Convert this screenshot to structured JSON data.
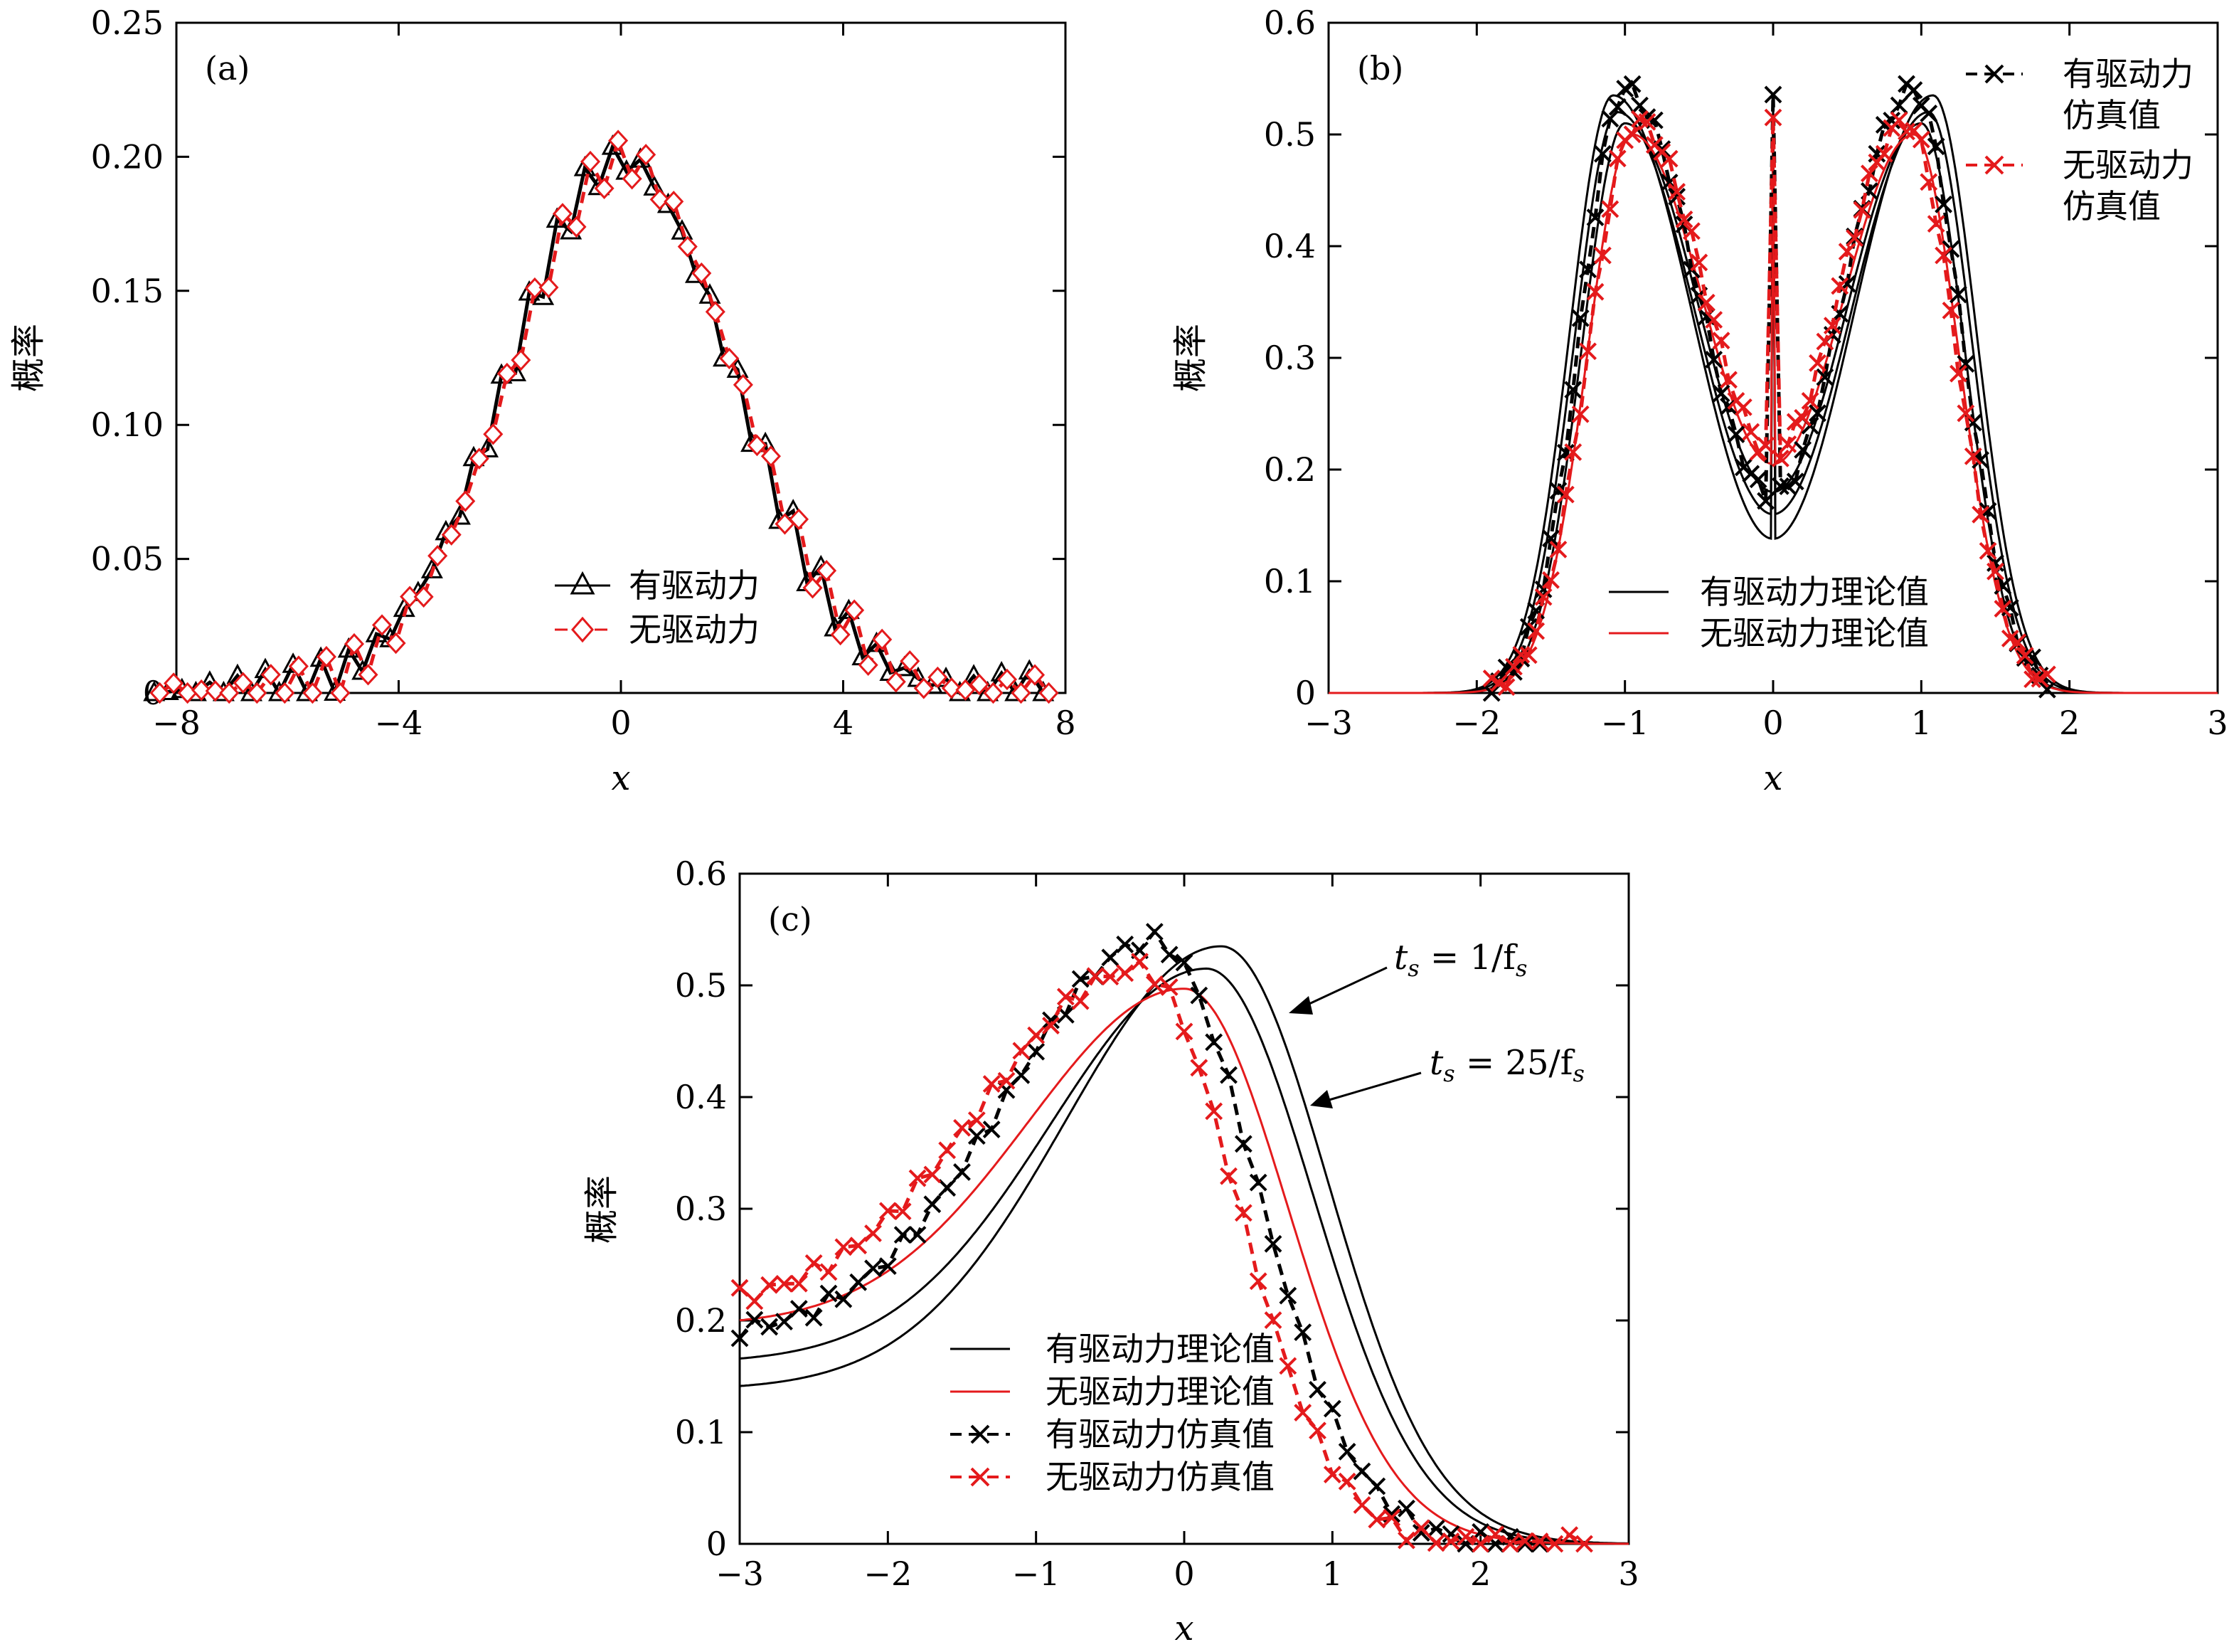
{
  "chart_data": [
    {
      "type": "line",
      "panel_label": "(a)",
      "xlabel": "x",
      "ylabel": "概率",
      "xlim": [
        -8,
        8
      ],
      "ylim": [
        0,
        0.25
      ],
      "xticks": [
        -8,
        -4,
        0,
        4,
        8
      ],
      "xtick_labels": [
        "−8",
        "−4",
        "0",
        "4",
        "8"
      ],
      "yticks": [
        0,
        0.05,
        0.1,
        0.15,
        0.2,
        0.25
      ],
      "ytick_labels": [
        "0",
        "0.05",
        "0.10",
        "0.15",
        "0.20",
        "0.25"
      ],
      "legend_position": "bottom-center",
      "series": [
        {
          "name": "有驱动力",
          "kind": "gauss",
          "marker": "triangle",
          "color": "#000000",
          "dashed": false,
          "mu": 0,
          "sigma": 2,
          "amp": 0.199,
          "x_start": -8.4,
          "x_end": 7.8,
          "step": 0.25
        },
        {
          "name": "无驱动力",
          "kind": "gauss",
          "marker": "diamond",
          "color": "#e41a1c",
          "dashed": true,
          "mu": 0.05,
          "sigma": 2,
          "amp": 0.199,
          "x_start": -8.3,
          "x_end": 7.9,
          "step": 0.25
        }
      ]
    },
    {
      "type": "line",
      "panel_label": "(b)",
      "xlabel": "x",
      "ylabel": "概率",
      "xlim": [
        -3,
        3
      ],
      "ylim": [
        0,
        0.6
      ],
      "xticks": [
        -3,
        -2,
        -1,
        0,
        1,
        2,
        3
      ],
      "xtick_labels": [
        "−3",
        "−2",
        "−1",
        "0",
        "1",
        "2",
        "3"
      ],
      "yticks": [
        0,
        0.1,
        0.2,
        0.3,
        0.4,
        0.5,
        0.6
      ],
      "ytick_labels": [
        "0",
        "0.1",
        "0.2",
        "0.3",
        "0.4",
        "0.5",
        "0.6"
      ],
      "legend_position": "bottom-center",
      "legend2_position": "top-right",
      "series": [
        {
          "name": "有驱动力理论值",
          "kind": "bimodal",
          "role": "theory",
          "color": "#000000",
          "dashed": false,
          "peaks": [
            -1.08,
            1.08
          ],
          "peak_height": 0.535,
          "center": 0.138,
          "edge": 1.78
        },
        {
          "name": "有驱动力理论值",
          "kind": "bimodal",
          "role": "theory-extra",
          "color": "#000000",
          "dashed": false,
          "peaks": [
            -1.05,
            1.05
          ],
          "peak_height": 0.52,
          "center": 0.16,
          "edge": 1.75
        },
        {
          "name": "有驱动力理论值",
          "kind": "bimodal",
          "role": "theory-extra",
          "color": "#000000",
          "dashed": false,
          "peaks": [
            -1.0,
            1.0
          ],
          "peak_height": 0.51,
          "center": 0.18,
          "edge": 1.7
        },
        {
          "name": "无驱动力理论值",
          "kind": "bimodal",
          "role": "theory",
          "color": "#e41a1c",
          "dashed": false,
          "peaks": [
            -0.95,
            0.95
          ],
          "peak_height": 0.5,
          "center": 0.205,
          "edge": 1.68
        },
        {
          "name": "有驱动力仿真值",
          "kind": "bimodal",
          "role": "sim",
          "marker": "x",
          "color": "#000000",
          "dashed": true,
          "peaks": [
            -1.0,
            0.95
          ],
          "peak_height": 0.54,
          "center": 0.175,
          "edge": 1.72,
          "x_start": -1.9,
          "x_end": 1.85,
          "step": 0.05
        },
        {
          "name": "无驱动力仿真值",
          "kind": "bimodal",
          "role": "sim",
          "marker": "x",
          "color": "#e41a1c",
          "dashed": true,
          "peaks": [
            -0.92,
            0.9
          ],
          "peak_height": 0.51,
          "center": 0.215,
          "edge": 1.7,
          "x_start": -1.9,
          "x_end": 1.85,
          "step": 0.05
        }
      ],
      "legend_items": [
        "有驱动力理论值",
        "无驱动力理论值"
      ],
      "legend2_items": [
        [
          "有驱动力",
          "仿真值"
        ],
        [
          "无驱动力",
          "仿真值"
        ]
      ]
    },
    {
      "type": "line",
      "panel_label": "(c)",
      "xlabel": "x",
      "ylabel": "概率",
      "xlim": [
        -3,
        3
      ],
      "ylim": [
        0,
        0.6
      ],
      "xticks": [
        -3,
        -2,
        -1,
        0,
        1,
        2,
        3
      ],
      "xtick_labels": [
        "−3",
        "−2",
        "−1",
        "0",
        "1",
        "2",
        "3"
      ],
      "yticks": [
        0,
        0.1,
        0.2,
        0.3,
        0.4,
        0.5,
        0.6
      ],
      "ytick_labels": [
        "0",
        "0.1",
        "0.2",
        "0.3",
        "0.4",
        "0.5",
        "0.6"
      ],
      "legend_position": "bottom-left",
      "series": [
        {
          "name": "有驱动力理论值",
          "kind": "skew",
          "role": "theory",
          "color": "#000000",
          "dashed": false,
          "peak_x": 0.25,
          "peak_height": 0.535,
          "left_val": 0.138,
          "sig_l": 1.05,
          "sig_r": 0.72
        },
        {
          "name": "有驱动力理论值",
          "kind": "skew",
          "role": "theory-extra",
          "color": "#000000",
          "dashed": false,
          "peak_x": 0.15,
          "peak_height": 0.515,
          "left_val": 0.162,
          "sig_l": 1.05,
          "sig_r": 0.72
        },
        {
          "name": "无驱动力理论值",
          "kind": "skew",
          "role": "theory",
          "color": "#e41a1c",
          "dashed": false,
          "peak_x": 0.0,
          "peak_height": 0.497,
          "left_val": 0.195,
          "sig_l": 1.05,
          "sig_r": 0.7
        },
        {
          "name": "有驱动力仿真值",
          "kind": "skew",
          "role": "sim",
          "marker": "x",
          "color": "#000000",
          "dashed": true,
          "peak_x": -0.2,
          "peak_height": 0.54,
          "left_val": 0.185,
          "sig_l": 1.0,
          "sig_r": 0.68,
          "x_start": -3.0,
          "x_end": 2.45,
          "step": 0.1
        },
        {
          "name": "无驱动力仿真值",
          "kind": "skew",
          "role": "sim",
          "marker": "x",
          "color": "#e41a1c",
          "dashed": true,
          "peak_x": -0.3,
          "peak_height": 0.515,
          "left_val": 0.21,
          "sig_l": 1.05,
          "sig_r": 0.65,
          "x_start": -3.0,
          "x_end": 2.7,
          "step": 0.1
        }
      ],
      "legend_items": [
        "有驱动力理论值",
        "无驱动力理论值",
        "有驱动力仿真值",
        "无驱动力仿真值"
      ],
      "annotations": [
        {
          "text_main": "t",
          "text_sub": "s",
          "text_rest": " = 1/f",
          "text_sub2": "s",
          "arrow_to": [
            0.75,
            0.48
          ]
        },
        {
          "text_main": "t",
          "text_sub": "s",
          "text_rest": " = 25/f",
          "text_sub2": "s",
          "arrow_to": [
            0.85,
            0.395
          ]
        }
      ]
    }
  ]
}
